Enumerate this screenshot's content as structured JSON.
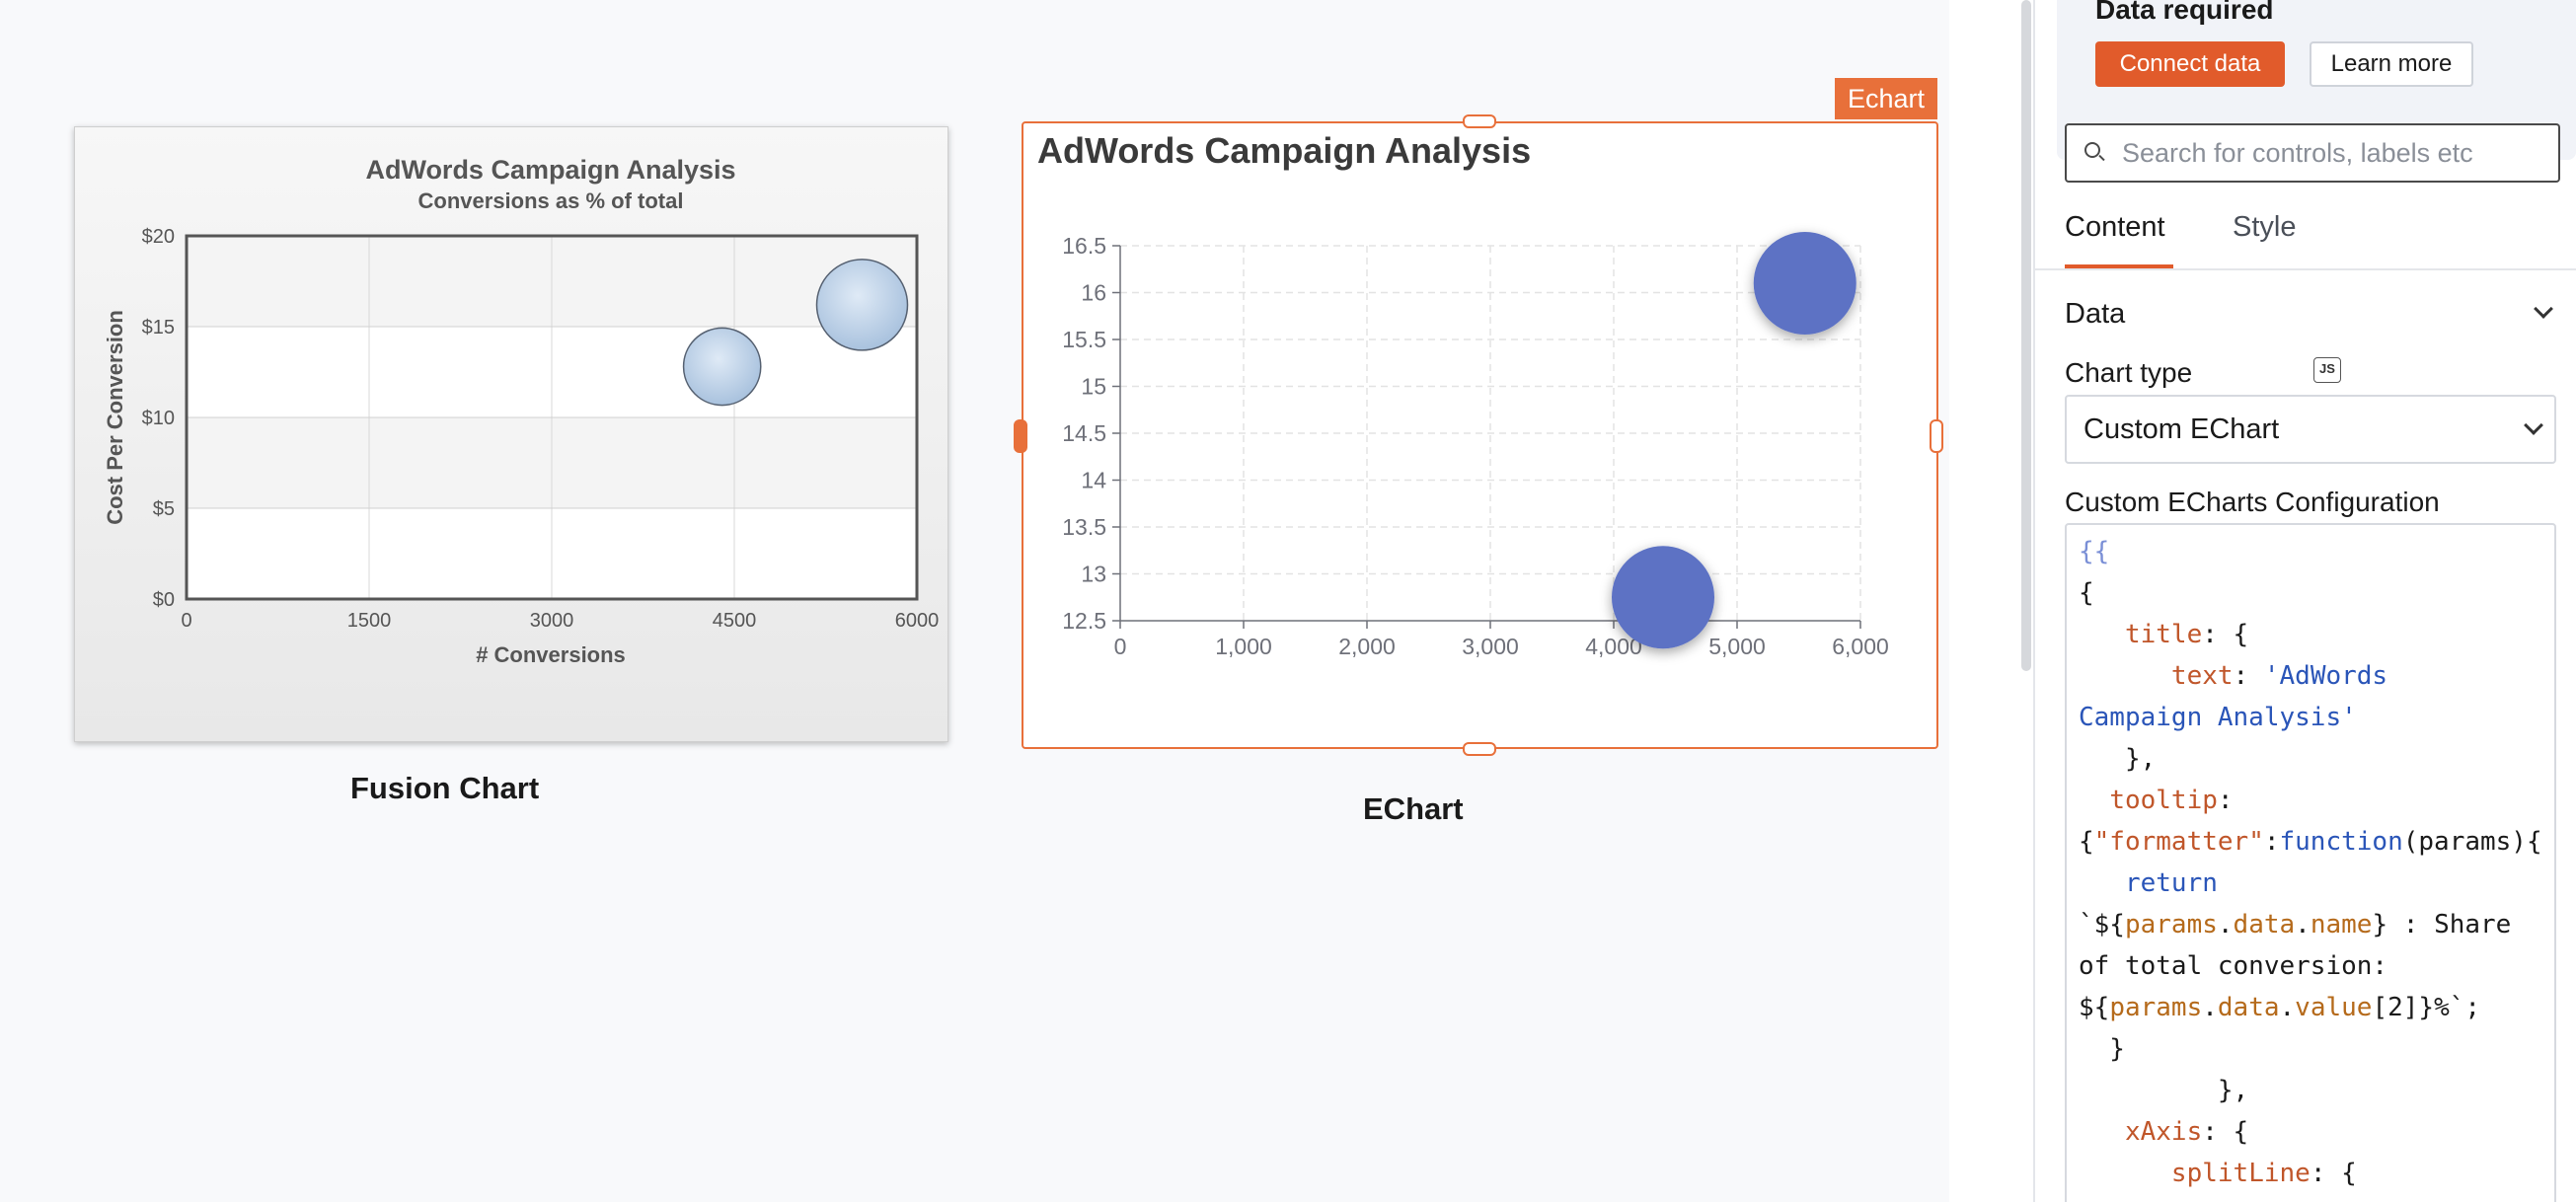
{
  "canvas": {
    "fusion_widget_label": "Fusion Chart",
    "echart_widget_label": "EChart",
    "echart_tag": "Echart"
  },
  "fusion_chart": {
    "chart_data": {
      "type": "scatter",
      "title": "AdWords Campaign Analysis",
      "subtitle": "Conversions as % of total",
      "xlabel": "# Conversions",
      "ylabel": "Cost Per Conversion",
      "xlim": [
        0,
        6000
      ],
      "ylim": [
        0,
        20
      ],
      "x_ticks": [
        "0",
        "1500",
        "3000",
        "4500",
        "6000"
      ],
      "y_ticks": [
        "$0",
        "$5",
        "$10",
        "$15",
        "$20"
      ],
      "points": [
        {
          "x": 4400,
          "y": 12.8,
          "z": 0.85
        },
        {
          "x": 5550,
          "y": 16.2,
          "z": 1.0
        }
      ],
      "bubble_color": "#a9c2de"
    }
  },
  "echart": {
    "chart_data": {
      "type": "scatter",
      "title": "AdWords Campaign Analysis",
      "xlim": [
        0,
        6000
      ],
      "ylim": [
        12.5,
        16.5
      ],
      "x_ticks": [
        "0",
        "1,000",
        "2,000",
        "3,000",
        "4,000",
        "5,000",
        "6,000"
      ],
      "y_ticks": [
        "12.5",
        "13",
        "13.5",
        "14",
        "14.5",
        "15",
        "15.5",
        "16",
        "16.5"
      ],
      "points": [
        {
          "x": 4400,
          "y": 12.75
        },
        {
          "x": 5550,
          "y": 16.1
        }
      ],
      "bubble_color": "#5d72c4",
      "grid": true
    }
  },
  "pane": {
    "data_required": "Data required",
    "connect_data": "Connect data",
    "learn_more": "Learn more",
    "search_placeholder": "Search for controls, labels etc",
    "tabs": [
      "Content",
      "Style"
    ],
    "section": "Data",
    "chart_type_label": "Chart type",
    "js_badge": "JS",
    "chart_type_value": "Custom EChart",
    "config_label": "Custom ECharts Configuration",
    "code_lines": [
      [
        [
          "b",
          "{{"
        ]
      ],
      [
        [
          "p",
          "{"
        ]
      ],
      [
        [
          "p",
          "   "
        ],
        [
          "k",
          "title"
        ],
        [
          "p",
          ": {"
        ]
      ],
      [
        [
          "p",
          "      "
        ],
        [
          "k",
          "text"
        ],
        [
          "p",
          ": "
        ],
        [
          "s",
          "'AdWords"
        ]
      ],
      [
        [
          "s",
          "Campaign Analysis'"
        ]
      ],
      [
        [
          "p",
          "   },"
        ]
      ],
      [
        [
          "p",
          "  "
        ],
        [
          "k",
          "tooltip"
        ],
        [
          "p",
          ":"
        ]
      ],
      [
        [
          "p",
          "{"
        ],
        [
          "k",
          "\"formatter\""
        ],
        [
          "p",
          ":"
        ],
        [
          "w",
          "function"
        ],
        [
          "p",
          "(params){"
        ]
      ],
      [
        [
          "p",
          "   "
        ],
        [
          "w",
          "return"
        ]
      ],
      [
        [
          "p",
          "`${"
        ],
        [
          "v",
          "params"
        ],
        [
          "p",
          "."
        ],
        [
          "v",
          "data"
        ],
        [
          "p",
          "."
        ],
        [
          "v",
          "name"
        ],
        [
          "p",
          "} : Share"
        ]
      ],
      [
        [
          "p",
          "of total conversion:"
        ]
      ],
      [
        [
          "p",
          "${"
        ],
        [
          "v",
          "params"
        ],
        [
          "p",
          "."
        ],
        [
          "v",
          "data"
        ],
        [
          "p",
          "."
        ],
        [
          "v",
          "value"
        ],
        [
          "p",
          "[2]}%`;"
        ]
      ],
      [
        [
          "p",
          "  }"
        ]
      ],
      [
        [
          "p",
          "         },"
        ]
      ],
      [
        [
          "p",
          "   "
        ],
        [
          "k",
          "xAxis"
        ],
        [
          "p",
          ": {"
        ]
      ],
      [
        [
          "p",
          "      "
        ],
        [
          "k",
          "splitLine"
        ],
        [
          "p",
          ": {"
        ]
      ]
    ]
  }
}
